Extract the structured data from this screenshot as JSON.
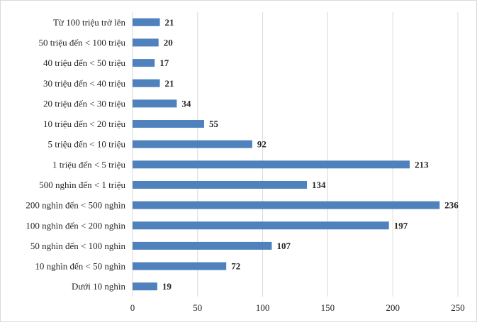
{
  "chart_data": {
    "type": "bar",
    "orientation": "horizontal",
    "title": "",
    "xlabel": "",
    "ylabel": "",
    "categories": [
      "Từ 100 triệu trở lên",
      "50 triệu đến < 100 triệu",
      "40 triệu đến < 50 triệu",
      "30 triệu đến < 40 triệu",
      "20 triệu đến < 30 triệu",
      "10 triệu đến < 20 triệu",
      "5 triệu đến < 10 triệu",
      "1 triệu đến < 5 triệu",
      "500 nghìn đến < 1 triệu",
      "200 nghìn đến < 500 nghìn",
      "100 nghìn đến < 200 nghìn",
      "50 nghìn đến < 100 nghìn",
      "10 nghìn đến < 50 nghìn",
      "Dưới 10 nghìn"
    ],
    "values": [
      21,
      20,
      17,
      21,
      34,
      55,
      92,
      213,
      134,
      236,
      197,
      107,
      72,
      19
    ],
    "xlim": [
      0,
      250
    ],
    "xticks": [
      0,
      50,
      100,
      150,
      200,
      250
    ],
    "grid": "vertical",
    "bar_color": "#4f81bd"
  }
}
